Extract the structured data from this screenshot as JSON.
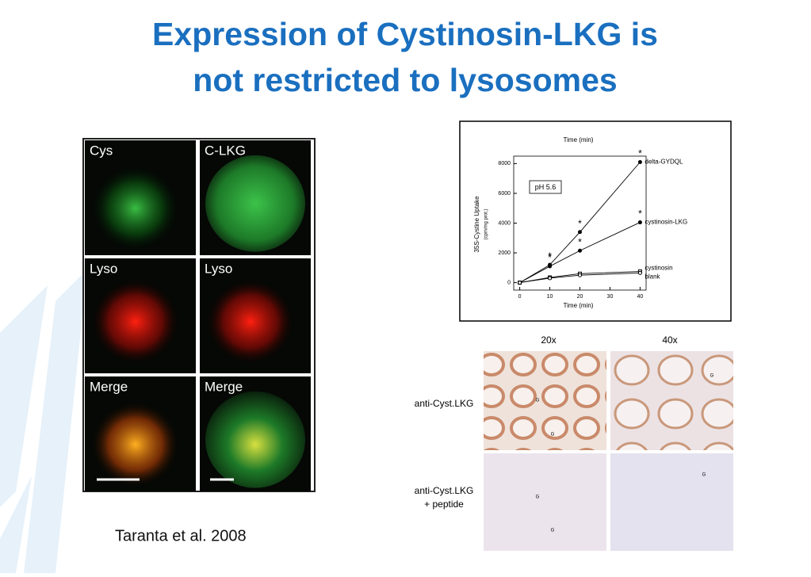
{
  "title": [
    "Expression of Cystinosin-LKG is",
    "not restricted to lysosomes"
  ],
  "microscopy": {
    "panels": [
      "Cys",
      "C-LKG",
      "Lyso",
      "Lyso",
      "Merge",
      "Merge"
    ]
  },
  "chart_data": {
    "type": "line",
    "x_label_top": "Time (min)",
    "x_label": "Time (min)",
    "y_label": "35S-Cystine Uptake",
    "y_label_unit": "(cpm/mg prot.)",
    "annotation": "pH 5.6",
    "significance_label": "*",
    "x": [
      0,
      10,
      20,
      40
    ],
    "series": [
      {
        "name": "delta-GYDQL",
        "color": "#000000",
        "values": [
          0,
          1200,
          3400,
          8100
        ]
      },
      {
        "name": "cystinosin-LKG",
        "color": "#000000",
        "values": [
          0,
          1100,
          2150,
          4050
        ]
      },
      {
        "name": "cystinosin",
        "color": "#000000",
        "values": [
          0,
          350,
          600,
          750
        ]
      },
      {
        "name": "blank",
        "color": "#000000",
        "values": [
          0,
          300,
          500,
          650
        ]
      }
    ],
    "xlim": [
      -2,
      42
    ],
    "xticks": [
      0,
      10,
      20,
      30,
      40
    ],
    "ylim": [
      -500,
      8500
    ],
    "yticks": [
      0,
      2000,
      4000,
      6000,
      8000
    ]
  },
  "ihc": {
    "columns": [
      "20x",
      "40x"
    ],
    "rows": [
      [
        "anti-Cyst.LKG"
      ],
      [
        "anti-Cyst.LKG",
        "+ peptide"
      ]
    ],
    "marker": "G"
  },
  "citation": "Taranta et al. 2008"
}
